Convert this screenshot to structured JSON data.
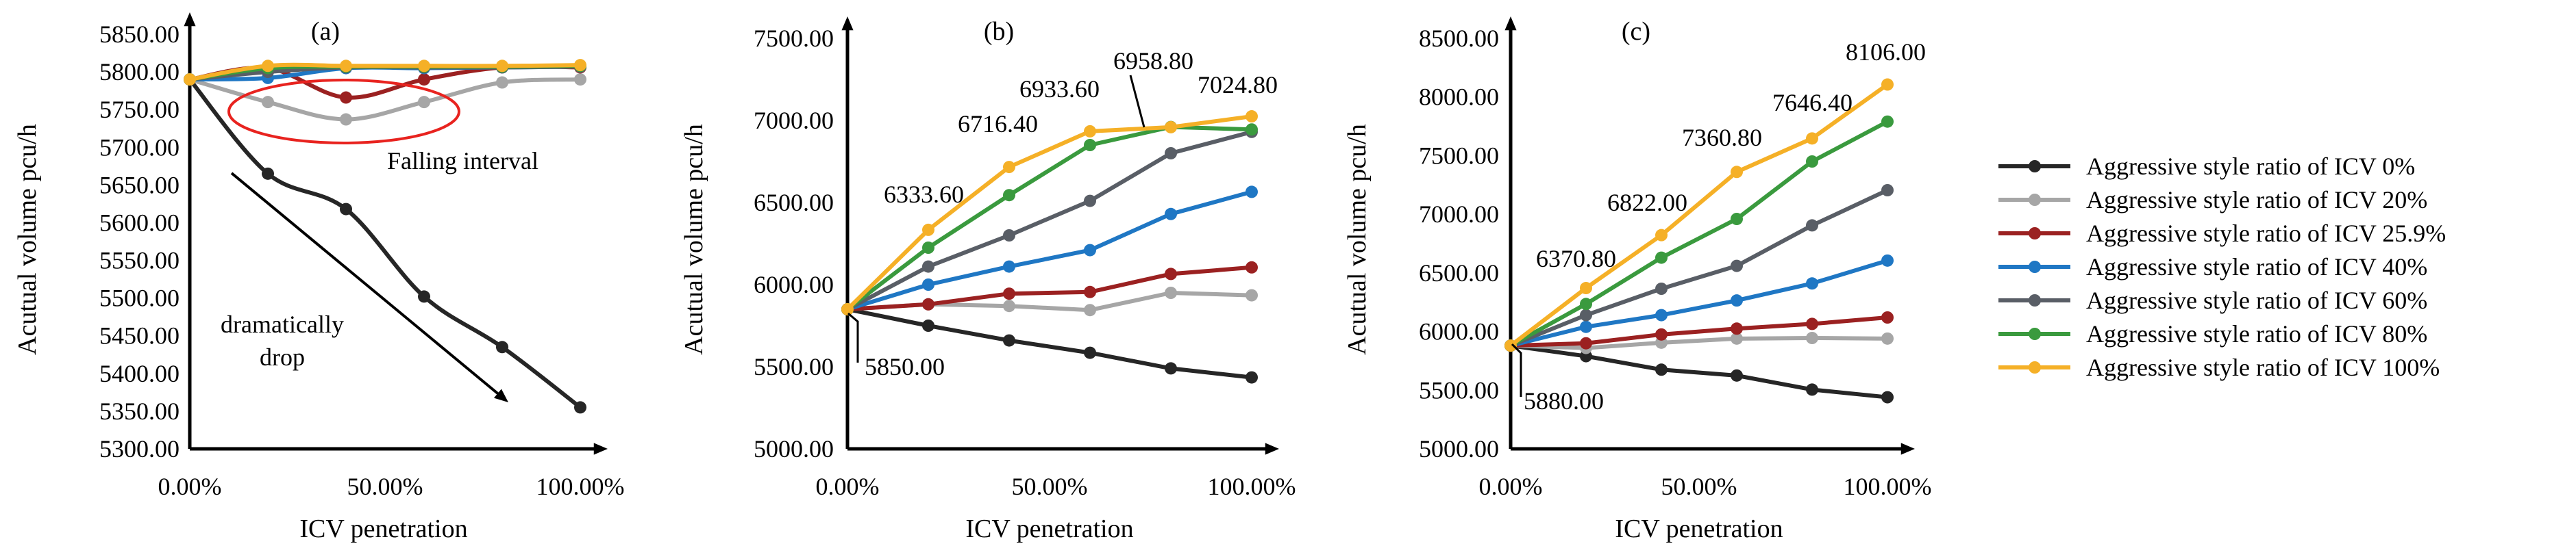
{
  "legend": {
    "entries": [
      {
        "label": "Aggressive style ratio of ICV 0%",
        "color": "#262626"
      },
      {
        "label": "Aggressive style ratio of ICV 20%",
        "color": "#a6a6a6"
      },
      {
        "label": "Aggressive style ratio of ICV 25.9%",
        "color": "#9b2121"
      },
      {
        "label": "Aggressive style ratio of ICV 40%",
        "color": "#1f77c4"
      },
      {
        "label": "Aggressive style ratio of ICV 60%",
        "color": "#595e66"
      },
      {
        "label": "Aggressive style ratio of ICV 80%",
        "color": "#3a9a3e"
      },
      {
        "label": "Aggressive style ratio of ICV 100%",
        "color": "#f5b027"
      }
    ]
  },
  "chart_data": [
    {
      "type": "line",
      "panel_label": "(a)",
      "xlabel": "ICV penetration",
      "ylabel": "Acutual volume pcu/h",
      "x": [
        0,
        20,
        40,
        60,
        80,
        100
      ],
      "x_tick_values": [
        0,
        50,
        100
      ],
      "x_tick_labels": [
        "0.00%",
        "50.00%",
        "100.00%"
      ],
      "xlim": [
        0,
        100
      ],
      "ylim": [
        5300,
        5850
      ],
      "y_ticks": [
        5300,
        5350,
        5400,
        5450,
        5500,
        5550,
        5600,
        5650,
        5700,
        5750,
        5800,
        5850
      ],
      "y_tick_labels": [
        "5300.00",
        "5350.00",
        "5400.00",
        "5450.00",
        "5500.00",
        "5550.00",
        "5600.00",
        "5650.00",
        "5700.00",
        "5750.00",
        "5800.00",
        "5850.00"
      ],
      "smooth": true,
      "series": [
        {
          "name": "Aggressive style ratio of ICV 0%",
          "color": "#262626",
          "values": [
            5790,
            5665,
            5618,
            5502,
            5435,
            5355
          ]
        },
        {
          "name": "Aggressive style ratio of ICV 20%",
          "color": "#a6a6a6",
          "values": [
            5790,
            5760,
            5737,
            5760,
            5786,
            5790
          ]
        },
        {
          "name": "Aggressive style ratio of ICV 25.9%",
          "color": "#9b2121",
          "values": [
            5790,
            5805,
            5766,
            5790,
            5806,
            5806
          ]
        },
        {
          "name": "Aggressive style ratio of ICV 40%",
          "color": "#1f77c4",
          "values": [
            5790,
            5792,
            5805,
            5805,
            5806,
            5807
          ]
        },
        {
          "name": "Aggressive style ratio of ICV 60%",
          "color": "#595e66",
          "values": [
            5790,
            5800,
            5806,
            5806,
            5806,
            5807
          ]
        },
        {
          "name": "Aggressive style ratio of ICV 80%",
          "color": "#3a9a3e",
          "values": [
            5790,
            5805,
            5807,
            5807,
            5807,
            5808
          ]
        },
        {
          "name": "Aggressive style ratio of ICV 100%",
          "color": "#f5b027",
          "values": [
            5790,
            5808,
            5808,
            5808,
            5808,
            5809
          ]
        }
      ],
      "annotations": [
        {
          "text": "Falling interval"
        },
        {
          "text": "dramatically"
        },
        {
          "text": "drop"
        }
      ]
    },
    {
      "type": "line",
      "panel_label": "(b)",
      "xlabel": "ICV penetration",
      "ylabel": "Acutual volume pcu/h",
      "x": [
        0,
        20,
        40,
        60,
        80,
        100
      ],
      "x_tick_values": [
        0,
        50,
        100
      ],
      "x_tick_labels": [
        "0.00%",
        "50.00%",
        "100.00%"
      ],
      "xlim": [
        0,
        100
      ],
      "ylim": [
        5000,
        7500
      ],
      "y_ticks": [
        5000,
        5500,
        6000,
        6500,
        7000,
        7500
      ],
      "y_tick_labels": [
        "5000.00",
        "5500.00",
        "6000.00",
        "6500.00",
        "7000.00",
        "7500.00"
      ],
      "smooth": false,
      "series": [
        {
          "name": "Aggressive style ratio of ICV 0%",
          "color": "#262626",
          "values": [
            5850,
            5750,
            5660,
            5585,
            5490,
            5435
          ]
        },
        {
          "name": "Aggressive style ratio of ICV 20%",
          "color": "#a6a6a6",
          "values": [
            5850,
            5880,
            5870,
            5845,
            5950,
            5935
          ]
        },
        {
          "name": "Aggressive style ratio of ICV 25.9%",
          "color": "#9b2121",
          "values": [
            5850,
            5880,
            5945,
            5955,
            6065,
            6105
          ]
        },
        {
          "name": "Aggressive style ratio of ICV 40%",
          "color": "#1f77c4",
          "values": [
            5850,
            6000,
            6110,
            6210,
            6430,
            6565
          ]
        },
        {
          "name": "Aggressive style ratio of ICV 60%",
          "color": "#595e66",
          "values": [
            5850,
            6110,
            6300,
            6510,
            6800,
            6930
          ]
        },
        {
          "name": "Aggressive style ratio of ICV 80%",
          "color": "#3a9a3e",
          "values": [
            5850,
            6225,
            6545,
            6850,
            6960,
            6945
          ]
        },
        {
          "name": "Aggressive style ratio of ICV 100%",
          "color": "#f5b027",
          "values": [
            5850,
            6333.6,
            6716.4,
            6933.6,
            6958.8,
            7024.8
          ]
        }
      ],
      "annotations": [
        {
          "text": "6333.60"
        },
        {
          "text": "6716.40"
        },
        {
          "text": "6933.60"
        },
        {
          "text": "6958.80"
        },
        {
          "text": "7024.80"
        },
        {
          "text": "5850.00"
        }
      ]
    },
    {
      "type": "line",
      "panel_label": "(c)",
      "xlabel": "ICV penetration",
      "ylabel": "Acutual volume pcu/h",
      "x": [
        0,
        20,
        40,
        60,
        80,
        100
      ],
      "x_tick_values": [
        0,
        50,
        100
      ],
      "x_tick_labels": [
        "0.00%",
        "50.00%",
        "100.00%"
      ],
      "xlim": [
        0,
        100
      ],
      "ylim": [
        5000,
        8500
      ],
      "y_ticks": [
        5000,
        5500,
        6000,
        6500,
        7000,
        7500,
        8000,
        8500
      ],
      "y_tick_labels": [
        "5000.00",
        "5500.00",
        "6000.00",
        "6500.00",
        "7000.00",
        "7500.00",
        "8000.00",
        "8500.00"
      ],
      "smooth": false,
      "series": [
        {
          "name": "Aggressive style ratio of ICV 0%",
          "color": "#262626",
          "values": [
            5880,
            5790,
            5675,
            5625,
            5505,
            5440
          ]
        },
        {
          "name": "Aggressive style ratio of ICV 20%",
          "color": "#a6a6a6",
          "values": [
            5880,
            5860,
            5905,
            5940,
            5945,
            5940
          ]
        },
        {
          "name": "Aggressive style ratio of ICV 25.9%",
          "color": "#9b2121",
          "values": [
            5880,
            5900,
            5975,
            6025,
            6065,
            6120
          ]
        },
        {
          "name": "Aggressive style ratio of ICV 40%",
          "color": "#1f77c4",
          "values": [
            5880,
            6040,
            6140,
            6265,
            6410,
            6605
          ]
        },
        {
          "name": "Aggressive style ratio of ICV 60%",
          "color": "#595e66",
          "values": [
            5880,
            6140,
            6365,
            6560,
            6905,
            7205
          ]
        },
        {
          "name": "Aggressive style ratio of ICV 80%",
          "color": "#3a9a3e",
          "values": [
            5880,
            6235,
            6630,
            6960,
            7450,
            7790
          ]
        },
        {
          "name": "Aggressive style ratio of ICV 100%",
          "color": "#f5b027",
          "values": [
            5880,
            6370.8,
            6822,
            7360.8,
            7646.4,
            8106
          ]
        }
      ],
      "annotations": [
        {
          "text": "6370.80"
        },
        {
          "text": "6822.00"
        },
        {
          "text": "7360.80"
        },
        {
          "text": "7646.40"
        },
        {
          "text": "8106.00"
        },
        {
          "text": "5880.00"
        }
      ]
    }
  ]
}
